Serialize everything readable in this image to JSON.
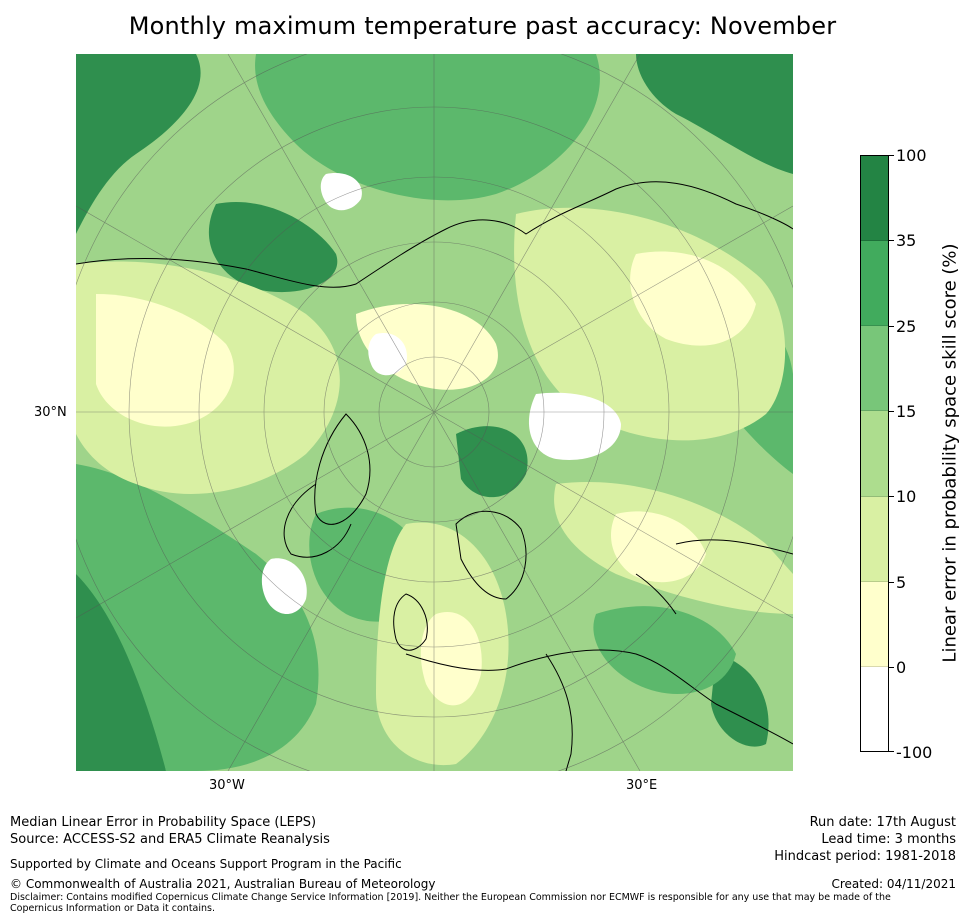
{
  "title": "Monthly maximum temperature past accuracy: November",
  "map": {
    "projection": "north-polar-stereographic",
    "lat_label": "30°N",
    "lon_labels": [
      "30°W",
      "30°E"
    ],
    "land_outline_color": "#000000",
    "graticule_color": "#555555"
  },
  "colorbar": {
    "title": "Linear error in probability space skill score (%)",
    "ticks": [
      "100",
      "35",
      "25",
      "15",
      "10",
      "5",
      "0",
      "-100"
    ],
    "colors": [
      "#238444",
      "#41ab5d",
      "#78c679",
      "#addd8e",
      "#d9f0a3",
      "#ffffcc",
      "#ffffff"
    ]
  },
  "footer": {
    "left_lines": [
      "Median Linear Error in Probability Space (LEPS)",
      "Source: ACCESS-S2 and ERA5 Climate Reanalysis"
    ],
    "right_lines": [
      "Run date: 17th August",
      "Lead time: 3 months",
      "Hindcast period: 1981-2018"
    ],
    "support": "Supported by Climate and Oceans Support Program in the Pacific",
    "copyright": "© Commonwealth of Australia 2021, Australian Bureau of Meteorology",
    "created": "Created: 04/11/2021",
    "disclaimer": "Disclaimer: Contains modified Copernicus Climate Change Service Information [2019]. Neither the European Commission nor ECMWF is responsible for any use that may be made of the Copernicus Information or Data it contains."
  }
}
